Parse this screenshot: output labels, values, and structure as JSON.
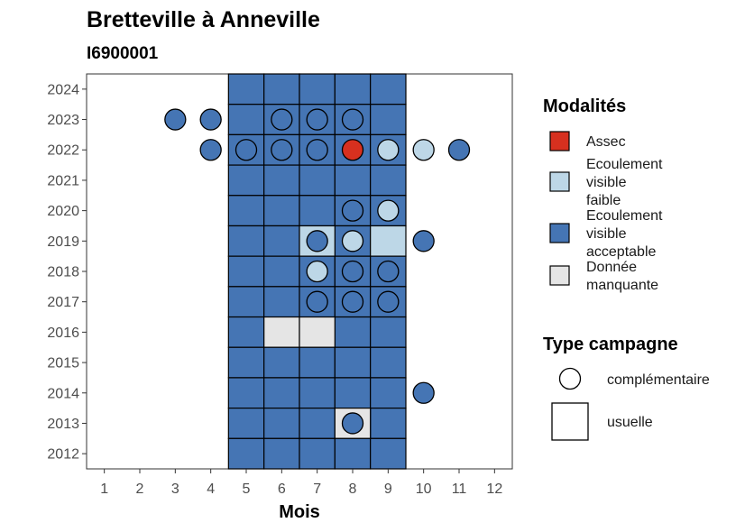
{
  "chart_data": {
    "type": "heatmap",
    "title": "Bretteville à Anneville",
    "subtitle": "I6900001",
    "xlabel": "Mois",
    "ylabel": "",
    "x_ticks": [
      1,
      2,
      3,
      4,
      5,
      6,
      7,
      8,
      9,
      10,
      11,
      12
    ],
    "y_ticks": [
      2012,
      2013,
      2014,
      2015,
      2016,
      2017,
      2018,
      2019,
      2020,
      2021,
      2022,
      2023,
      2024
    ],
    "xlim": [
      0.5,
      12.5
    ],
    "ylim": [
      2011.5,
      2024.5
    ],
    "grid": false,
    "legend_position": "right",
    "colors": {
      "Assec": "#d7301f",
      "Ecoulement visible faible": "#bdd7e7",
      "Ecoulement visible acceptable": "#4575b4",
      "Donnée manquante": "#e5e5e5"
    },
    "legends": [
      {
        "title": "Modalités",
        "entries": [
          {
            "key": "Assec",
            "lines": [
              "Assec"
            ]
          },
          {
            "key": "Ecoulement visible faible",
            "lines": [
              "Ecoulement",
              "visible",
              "faible"
            ]
          },
          {
            "key": "Ecoulement visible acceptable",
            "lines": [
              "Ecoulement",
              "visible",
              "acceptable"
            ]
          },
          {
            "key": "Donnée manquante",
            "lines": [
              "Donnée",
              "manquante"
            ]
          }
        ]
      },
      {
        "title": "Type campagne",
        "entries": [
          {
            "shape": "circle",
            "label": "complémentaire"
          },
          {
            "shape": "square",
            "label": "usuelle"
          }
        ]
      }
    ],
    "usuelle_tiles": [
      {
        "year": 2024,
        "months": [
          5,
          6,
          7,
          8,
          9
        ],
        "value": "Ecoulement visible acceptable"
      },
      {
        "year": 2023,
        "months": [
          5,
          6,
          7,
          8,
          9
        ],
        "value": "Ecoulement visible acceptable"
      },
      {
        "year": 2022,
        "months": [
          5,
          6,
          7,
          8,
          9
        ],
        "value": "Ecoulement visible acceptable"
      },
      {
        "year": 2021,
        "months": [
          5,
          6,
          7,
          8,
          9
        ],
        "value": "Ecoulement visible acceptable"
      },
      {
        "year": 2020,
        "months": [
          5,
          6,
          7,
          8,
          9
        ],
        "value": "Ecoulement visible acceptable"
      },
      {
        "year": 2019,
        "months": [
          5,
          6,
          8
        ],
        "value": "Ecoulement visible acceptable"
      },
      {
        "year": 2019,
        "months": [
          7,
          9
        ],
        "value": "Ecoulement visible faible"
      },
      {
        "year": 2018,
        "months": [
          5,
          6,
          7,
          8,
          9
        ],
        "value": "Ecoulement visible acceptable"
      },
      {
        "year": 2017,
        "months": [
          5,
          6,
          7,
          8,
          9
        ],
        "value": "Ecoulement visible acceptable"
      },
      {
        "year": 2016,
        "months": [
          5,
          8,
          9
        ],
        "value": "Ecoulement visible acceptable"
      },
      {
        "year": 2016,
        "months": [
          6,
          7
        ],
        "value": "Donnée manquante"
      },
      {
        "year": 2015,
        "months": [
          5,
          6,
          7,
          8,
          9
        ],
        "value": "Ecoulement visible acceptable"
      },
      {
        "year": 2014,
        "months": [
          5,
          6,
          7,
          8,
          9
        ],
        "value": "Ecoulement visible acceptable"
      },
      {
        "year": 2013,
        "months": [
          5,
          6,
          7,
          9
        ],
        "value": "Ecoulement visible acceptable"
      },
      {
        "year": 2013,
        "months": [
          8
        ],
        "value": "Donnée manquante"
      },
      {
        "year": 2012,
        "months": [
          5,
          6,
          7,
          8,
          9
        ],
        "value": "Ecoulement visible acceptable"
      }
    ],
    "complementaire_points": [
      {
        "year": 2023,
        "month": 3,
        "value": "Ecoulement visible acceptable"
      },
      {
        "year": 2023,
        "month": 4,
        "value": "Ecoulement visible acceptable"
      },
      {
        "year": 2023,
        "month": 6,
        "value": "Ecoulement visible acceptable"
      },
      {
        "year": 2023,
        "month": 7,
        "value": "Ecoulement visible acceptable"
      },
      {
        "year": 2023,
        "month": 8,
        "value": "Ecoulement visible acceptable"
      },
      {
        "year": 2022,
        "month": 4,
        "value": "Ecoulement visible acceptable"
      },
      {
        "year": 2022,
        "month": 5,
        "value": "Ecoulement visible acceptable"
      },
      {
        "year": 2022,
        "month": 6,
        "value": "Ecoulement visible acceptable"
      },
      {
        "year": 2022,
        "month": 7,
        "value": "Ecoulement visible acceptable"
      },
      {
        "year": 2022,
        "month": 8,
        "value": "Assec"
      },
      {
        "year": 2022,
        "month": 9,
        "value": "Ecoulement visible faible"
      },
      {
        "year": 2022,
        "month": 10,
        "value": "Ecoulement visible faible"
      },
      {
        "year": 2022,
        "month": 11,
        "value": "Ecoulement visible acceptable"
      },
      {
        "year": 2020,
        "month": 8,
        "value": "Ecoulement visible acceptable"
      },
      {
        "year": 2020,
        "month": 9,
        "value": "Ecoulement visible faible"
      },
      {
        "year": 2019,
        "month": 7,
        "value": "Ecoulement visible acceptable"
      },
      {
        "year": 2019,
        "month": 8,
        "value": "Ecoulement visible faible"
      },
      {
        "year": 2019,
        "month": 10,
        "value": "Ecoulement visible acceptable"
      },
      {
        "year": 2018,
        "month": 7,
        "value": "Ecoulement visible faible"
      },
      {
        "year": 2018,
        "month": 8,
        "value": "Ecoulement visible acceptable"
      },
      {
        "year": 2018,
        "month": 9,
        "value": "Ecoulement visible acceptable"
      },
      {
        "year": 2017,
        "month": 7,
        "value": "Ecoulement visible acceptable"
      },
      {
        "year": 2017,
        "month": 8,
        "value": "Ecoulement visible acceptable"
      },
      {
        "year": 2017,
        "month": 9,
        "value": "Ecoulement visible acceptable"
      },
      {
        "year": 2014,
        "month": 10,
        "value": "Ecoulement visible acceptable"
      },
      {
        "year": 2013,
        "month": 8,
        "value": "Ecoulement visible acceptable"
      }
    ]
  }
}
